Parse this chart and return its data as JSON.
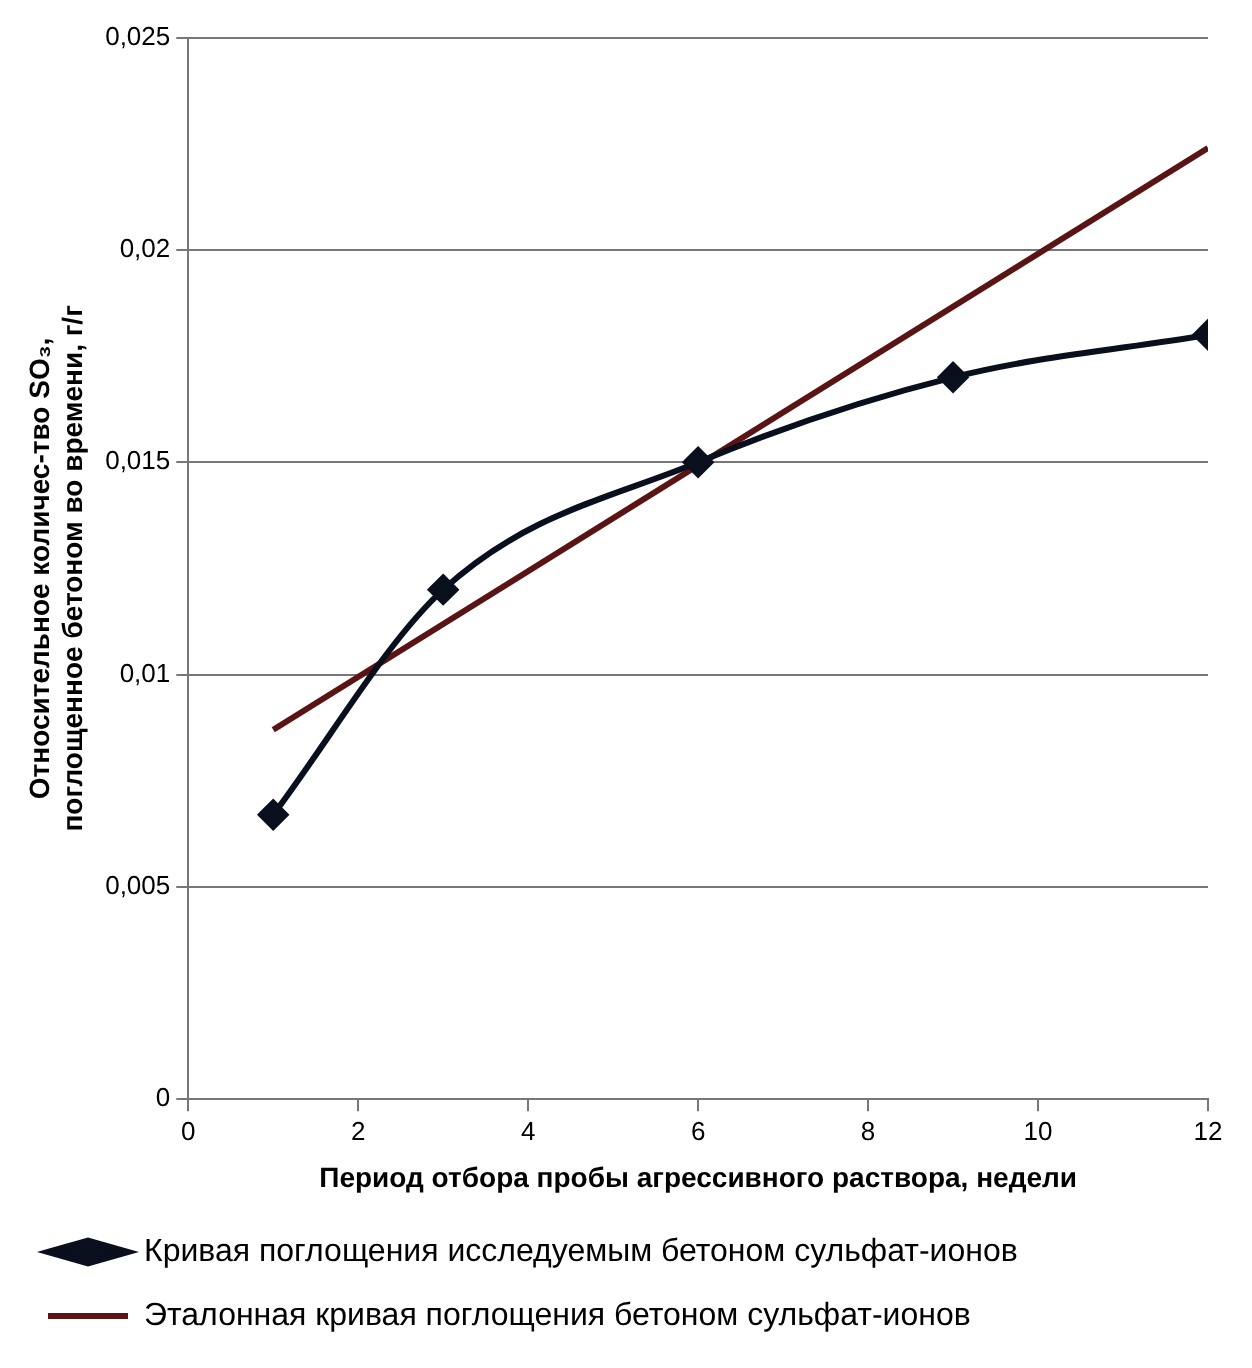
{
  "chart_data": {
    "type": "line",
    "xlabel": "Период отбора пробы агрессивного раствора, недели",
    "ylabel": "Относительное количес-тво SO₃,\nпоглощенное бетоном во времени, г/г",
    "xlim": [
      0,
      12
    ],
    "xticks": [
      0,
      2,
      4,
      6,
      8,
      10,
      12
    ],
    "ylim": [
      0,
      0.025
    ],
    "yticks": [
      0,
      {
        "value": 0.005,
        "label": "0,005"
      },
      {
        "value": 0.01,
        "label": "0,01"
      },
      {
        "value": 0.015,
        "label": "0,015"
      },
      {
        "value": 0.02,
        "label": "0,02"
      },
      {
        "value": 0.025,
        "label": "0,025"
      }
    ],
    "grid": "y",
    "legend": "bottom",
    "series": [
      {
        "name": "Кривая поглощения исследуемым бетоном сульфат-ионов",
        "color": "#0a0f1e",
        "marker": "diamond",
        "x": [
          1,
          3,
          6,
          9,
          12
        ],
        "values": [
          0.0067,
          0.012,
          0.015,
          0.017,
          0.018
        ]
      },
      {
        "name": "Эталонная кривая поглощения бетоном сульфат-ионов",
        "color": "#5a1414",
        "marker": "none",
        "x": [
          1,
          12
        ],
        "values": [
          0.0087,
          0.0224
        ]
      }
    ]
  }
}
